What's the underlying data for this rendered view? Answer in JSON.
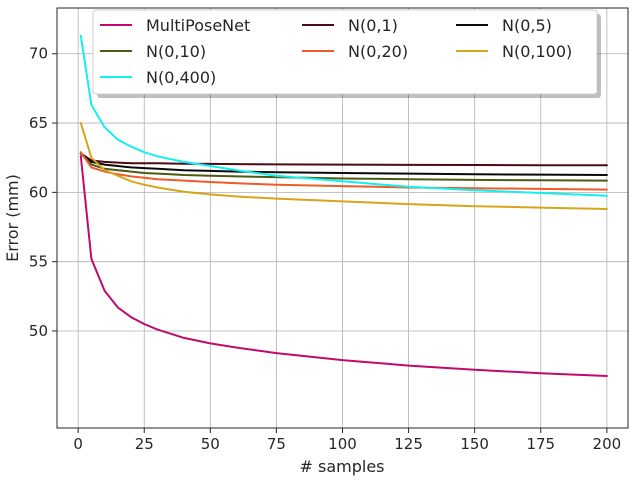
{
  "chart_data": {
    "type": "line",
    "title": "",
    "xlabel": "# samples",
    "ylabel": "Error (mm)",
    "xlim": [
      -8,
      208
    ],
    "ylim": [
      43,
      73.3
    ],
    "xticks": [
      0,
      25,
      50,
      75,
      100,
      125,
      150,
      175,
      200
    ],
    "yticks": [
      50,
      55,
      60,
      65,
      70
    ],
    "grid": true,
    "legend_position": "top",
    "x": [
      1,
      5,
      10,
      15,
      20,
      25,
      30,
      35,
      40,
      50,
      60,
      75,
      100,
      125,
      150,
      175,
      200
    ],
    "series": [
      {
        "name": "MultiPoseNet",
        "color": "#bf0a6e",
        "values": [
          62.6,
          55.2,
          52.9,
          51.7,
          51.0,
          50.5,
          50.1,
          49.8,
          49.5,
          49.1,
          48.8,
          48.4,
          47.9,
          47.5,
          47.2,
          46.95,
          46.75
        ]
      },
      {
        "name": "N(0,1)",
        "color": "#4d0a14",
        "values": [
          62.8,
          62.3,
          62.2,
          62.15,
          62.1,
          62.1,
          62.1,
          62.08,
          62.07,
          62.05,
          62.04,
          62.02,
          62.0,
          61.98,
          61.97,
          61.96,
          61.95
        ]
      },
      {
        "name": "N(0,5)",
        "color": "#0a0a0a",
        "values": [
          62.8,
          62.2,
          62.0,
          61.9,
          61.8,
          61.75,
          61.7,
          61.65,
          61.6,
          61.55,
          61.5,
          61.45,
          61.4,
          61.35,
          61.3,
          61.28,
          61.25
        ]
      },
      {
        "name": "N(0,10)",
        "color": "#4c5a14",
        "values": [
          62.8,
          62.0,
          61.7,
          61.6,
          61.5,
          61.4,
          61.35,
          61.3,
          61.25,
          61.2,
          61.15,
          61.1,
          61.0,
          60.95,
          60.9,
          60.87,
          60.85
        ]
      },
      {
        "name": "N(0,20)",
        "color": "#f05b2a",
        "values": [
          62.9,
          61.8,
          61.5,
          61.3,
          61.15,
          61.05,
          60.95,
          60.9,
          60.85,
          60.75,
          60.65,
          60.55,
          60.45,
          60.35,
          60.3,
          60.25,
          60.2
        ]
      },
      {
        "name": "N(0,100)",
        "color": "#d6a51c",
        "values": [
          65.0,
          62.5,
          61.6,
          61.2,
          60.8,
          60.55,
          60.35,
          60.2,
          60.05,
          59.85,
          59.7,
          59.55,
          59.35,
          59.15,
          59.0,
          58.9,
          58.8
        ]
      },
      {
        "name": "N(0,400)",
        "color": "#14f0f0",
        "values": [
          71.3,
          66.3,
          64.7,
          63.8,
          63.3,
          62.9,
          62.6,
          62.4,
          62.2,
          61.9,
          61.6,
          61.2,
          60.8,
          60.4,
          60.15,
          59.95,
          59.75
        ]
      }
    ],
    "legend_order": [
      "MultiPoseNet",
      "N(0,1)",
      "N(0,5)",
      "N(0,10)",
      "N(0,20)",
      "N(0,100)",
      "N(0,400)"
    ]
  }
}
